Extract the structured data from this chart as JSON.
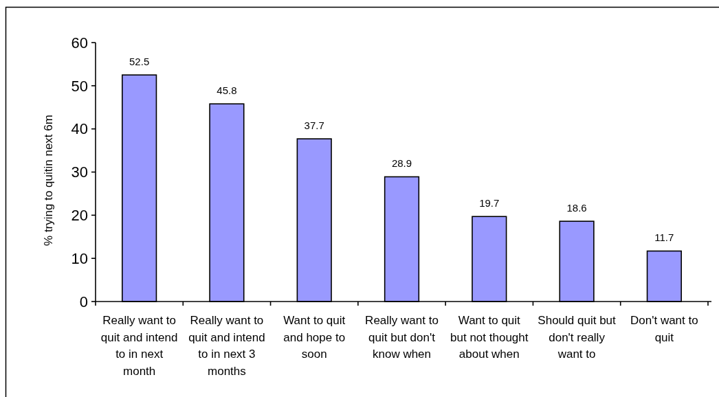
{
  "chart_data": {
    "type": "bar",
    "ylabel": "% trying to quitin next 6m",
    "categories": [
      "Really want to quit and intend to in next month",
      "Really want to quit and intend to in next 3 months",
      "Want to quit and hope to soon",
      "Really want to quit but don't know when",
      "Want to quit but not thought about when",
      "Should quit but don't really want to",
      "Don't want to quit"
    ],
    "values": [
      52.5,
      45.8,
      37.7,
      28.9,
      19.7,
      18.6,
      11.7
    ],
    "color": "#9999ff",
    "ylim": [
      0,
      60
    ],
    "yticks": [
      0,
      10,
      20,
      30,
      40,
      50,
      60
    ],
    "data_labels": true
  }
}
